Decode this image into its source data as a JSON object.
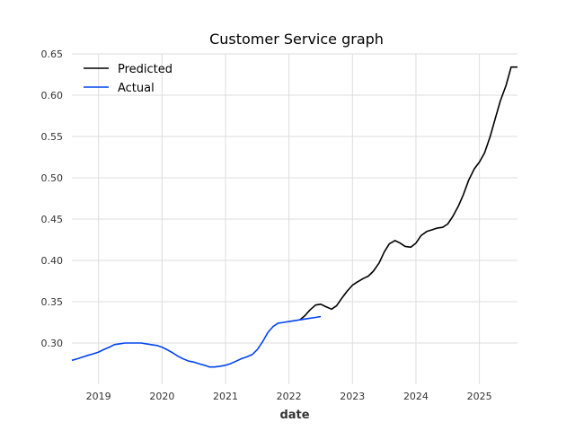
{
  "chart_data": {
    "type": "line",
    "title": "Customer Service graph",
    "xlabel": "date",
    "ylabel": "",
    "xlim": [
      2018.58,
      2025.6
    ],
    "ylim": [
      0.25,
      0.65
    ],
    "x_ticks": [
      2019,
      2020,
      2021,
      2022,
      2023,
      2024,
      2025
    ],
    "y_ticks": [
      0.3,
      0.35,
      0.4,
      0.45,
      0.5,
      0.55,
      0.6,
      0.65
    ],
    "y_tick_labels": [
      "0.30",
      "0.35",
      "0.40",
      "0.45",
      "0.50",
      "0.55",
      "0.60",
      "0.65"
    ],
    "x_tick_labels": [
      "2019",
      "2020",
      "2021",
      "2022",
      "2023",
      "2024",
      "2025"
    ],
    "grid": true,
    "legend_position": "top-left",
    "series": [
      {
        "name": "Predicted",
        "color": "#000000",
        "x": [
          2022.17,
          2022.25,
          2022.33,
          2022.42,
          2022.5,
          2022.58,
          2022.67,
          2022.75,
          2022.83,
          2022.92,
          2023.0,
          2023.08,
          2023.17,
          2023.25,
          2023.33,
          2023.42,
          2023.5,
          2023.58,
          2023.67,
          2023.75,
          2023.83,
          2023.92,
          2024.0,
          2024.08,
          2024.17,
          2024.25,
          2024.33,
          2024.42,
          2024.5,
          2024.58,
          2024.67,
          2024.75,
          2024.83,
          2024.92,
          2025.0,
          2025.08,
          2025.17,
          2025.25,
          2025.33,
          2025.42,
          2025.5,
          2025.6
        ],
        "y": [
          0.328,
          0.333,
          0.34,
          0.346,
          0.347,
          0.344,
          0.341,
          0.345,
          0.354,
          0.363,
          0.37,
          0.374,
          0.378,
          0.381,
          0.387,
          0.397,
          0.41,
          0.42,
          0.424,
          0.421,
          0.417,
          0.416,
          0.421,
          0.43,
          0.435,
          0.437,
          0.439,
          0.44,
          0.444,
          0.453,
          0.466,
          0.48,
          0.497,
          0.511,
          0.519,
          0.53,
          0.55,
          0.572,
          0.593,
          0.612,
          0.634,
          0.634
        ]
      },
      {
        "name": "Actual",
        "color": "#0044ee",
        "x": [
          2018.58,
          2018.67,
          2018.75,
          2018.83,
          2018.92,
          2019.0,
          2019.08,
          2019.17,
          2019.25,
          2019.33,
          2019.42,
          2019.5,
          2019.58,
          2019.67,
          2019.75,
          2019.83,
          2019.92,
          2020.0,
          2020.08,
          2020.17,
          2020.25,
          2020.33,
          2020.42,
          2020.5,
          2020.58,
          2020.67,
          2020.75,
          2020.83,
          2020.92,
          2021.0,
          2021.08,
          2021.17,
          2021.25,
          2021.33,
          2021.42,
          2021.5,
          2021.58,
          2021.67,
          2021.75,
          2021.83,
          2021.92,
          2022.0,
          2022.08,
          2022.17,
          2022.25,
          2022.33,
          2022.42,
          2022.5
        ],
        "y": [
          0.279,
          0.281,
          0.283,
          0.285,
          0.287,
          0.289,
          0.292,
          0.295,
          0.298,
          0.299,
          0.3,
          0.3,
          0.3,
          0.3,
          0.299,
          0.298,
          0.297,
          0.295,
          0.292,
          0.288,
          0.284,
          0.281,
          0.278,
          0.277,
          0.275,
          0.273,
          0.271,
          0.271,
          0.272,
          0.273,
          0.275,
          0.278,
          0.281,
          0.283,
          0.286,
          0.292,
          0.301,
          0.313,
          0.32,
          0.324,
          0.325,
          0.326,
          0.327,
          0.328,
          0.329,
          0.33,
          0.331,
          0.332
        ]
      }
    ]
  }
}
